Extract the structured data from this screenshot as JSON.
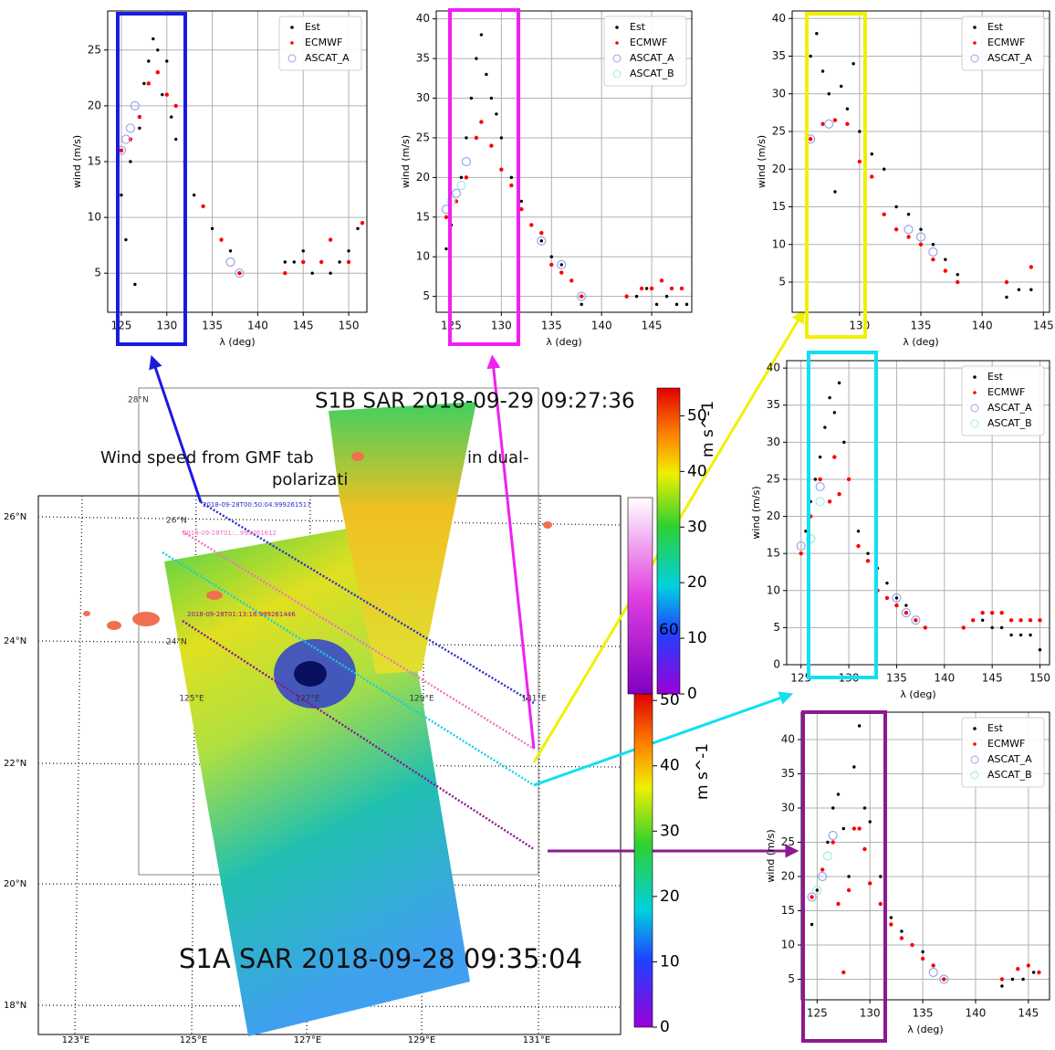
{
  "chart_data": [
    {
      "type": "scatter",
      "xlabel": "λ (deg)",
      "ylabel": "wind (m/s)",
      "xlim": [
        123.5,
        152
      ],
      "ylim": [
        1.5,
        28.5
      ],
      "xticks": [
        125,
        130,
        135,
        140,
        145,
        150
      ],
      "yticks": [
        5,
        10,
        15,
        20,
        25
      ],
      "grid": true,
      "legend": "upper right",
      "series": [
        {
          "name": "Est",
          "color": "#000000",
          "marker": "dot",
          "x": [
            125,
            125.5,
            126,
            126.5,
            127,
            127.5,
            128,
            128.5,
            129,
            129.5,
            130,
            130.5,
            131,
            132,
            133,
            134,
            135,
            136,
            137,
            138,
            143,
            144,
            145,
            146,
            147,
            148,
            149,
            150,
            151
          ],
          "values": [
            12,
            8,
            15,
            4,
            18,
            22,
            24,
            26,
            25,
            21,
            24,
            19,
            17,
            14,
            12,
            11,
            9,
            8,
            7,
            5,
            6,
            6,
            7,
            5,
            6,
            5,
            6,
            7,
            9
          ]
        },
        {
          "name": "ECMWF",
          "color": "#ff0000",
          "marker": "dot",
          "x": [
            125,
            126,
            127,
            128,
            129,
            130,
            131,
            132,
            134,
            136,
            138,
            143,
            145,
            147,
            148,
            150,
            151.5
          ],
          "values": [
            16,
            17,
            19,
            22,
            23,
            21,
            20,
            15,
            11,
            8,
            5,
            5,
            6,
            6,
            8,
            6,
            9.5
          ]
        },
        {
          "name": "ASCAT_A",
          "color": "#9aa4ee",
          "marker": "open",
          "x": [
            125,
            125.5,
            126,
            126.5,
            137,
            138
          ],
          "values": [
            16,
            17,
            18,
            20,
            6,
            5
          ]
        }
      ]
    },
    {
      "type": "scatter",
      "xlabel": "λ (deg)",
      "ylabel": "wind (m/s)",
      "xlim": [
        123.5,
        149
      ],
      "ylim": [
        3,
        41
      ],
      "xticks": [
        125,
        130,
        135,
        140,
        145
      ],
      "yticks": [
        5,
        10,
        15,
        20,
        25,
        30,
        35,
        40
      ],
      "grid": true,
      "legend": "upper right",
      "series": [
        {
          "name": "Est",
          "color": "#000000",
          "marker": "dot",
          "x": [
            124.5,
            125,
            125.5,
            126,
            126.5,
            127,
            127.5,
            128,
            128.5,
            129,
            129.5,
            130,
            131,
            132,
            133,
            134,
            135,
            136,
            137,
            138,
            142.5,
            143.5,
            144.5,
            145.5,
            146.5,
            147.5,
            148.5
          ],
          "values": [
            11,
            14,
            17,
            20,
            25,
            30,
            35,
            38,
            33,
            30,
            28,
            25,
            20,
            17,
            14,
            12,
            10,
            9,
            7,
            4,
            5,
            5,
            6,
            4,
            5,
            4,
            4
          ]
        },
        {
          "name": "ECMWF",
          "color": "#ff0000",
          "marker": "dot",
          "x": [
            124.5,
            125.5,
            126.5,
            127.5,
            128,
            129,
            130,
            131,
            132,
            133,
            134,
            135,
            136,
            137,
            138,
            142.5,
            144,
            145,
            146,
            147,
            148
          ],
          "values": [
            15,
            17,
            20,
            25,
            27,
            24,
            21,
            19,
            16,
            14,
            13,
            9,
            8,
            7,
            5,
            5,
            6,
            6,
            7,
            6,
            6
          ]
        },
        {
          "name": "ASCAT_A",
          "color": "#9aa4ee",
          "marker": "open",
          "x": [
            124.5,
            125.5,
            126.5,
            134,
            136,
            138
          ],
          "values": [
            16,
            18,
            22,
            12,
            9,
            5
          ]
        },
        {
          "name": "ASCAT_B",
          "color": "#9eeede",
          "marker": "open",
          "x": [
            125,
            126
          ],
          "values": [
            17,
            19
          ]
        }
      ]
    },
    {
      "type": "scatter",
      "xlabel": "λ (deg)",
      "ylabel": "wind (m/s)",
      "xlim": [
        124.5,
        145.5
      ],
      "ylim": [
        1,
        41
      ],
      "xticks": [
        130,
        135,
        140,
        145
      ],
      "yticks": [
        5,
        10,
        15,
        20,
        25,
        30,
        35,
        40
      ],
      "grid": true,
      "legend": "upper right",
      "series": [
        {
          "name": "Est",
          "color": "#000000",
          "marker": "dot",
          "x": [
            126,
            126.5,
            127,
            127.5,
            128,
            128.5,
            129,
            129.5,
            130,
            131,
            132,
            133,
            134,
            135,
            136,
            137,
            138,
            142,
            143,
            144
          ],
          "values": [
            35,
            38,
            33,
            30,
            17,
            31,
            28,
            34,
            25,
            22,
            20,
            15,
            14,
            12,
            10,
            8,
            6,
            3,
            4,
            4
          ]
        },
        {
          "name": "ECMWF",
          "color": "#ff0000",
          "marker": "dot",
          "x": [
            126,
            127,
            128,
            129,
            130,
            131,
            132,
            133,
            134,
            135,
            136,
            137,
            138,
            142,
            144
          ],
          "values": [
            24,
            26,
            26.5,
            26,
            21,
            19,
            14,
            12,
            11,
            10,
            8,
            6.5,
            5,
            5,
            7
          ]
        },
        {
          "name": "ASCAT_A",
          "color": "#9aa4ee",
          "marker": "open",
          "x": [
            126,
            127.5,
            134,
            135,
            136
          ],
          "values": [
            24,
            26,
            12,
            11,
            9
          ]
        }
      ]
    },
    {
      "type": "scatter",
      "xlabel": "λ (deg)",
      "ylabel": "wind (m/s)",
      "xlim": [
        123.5,
        151
      ],
      "ylim": [
        0,
        41
      ],
      "xticks": [
        125,
        130,
        135,
        140,
        145,
        150
      ],
      "yticks": [
        0,
        5,
        10,
        15,
        20,
        25,
        30,
        35,
        40
      ],
      "grid": true,
      "legend": "upper right",
      "series": [
        {
          "name": "Est",
          "color": "#000000",
          "marker": "dot",
          "x": [
            125,
            125.5,
            126,
            126.5,
            127,
            127.5,
            128,
            128.5,
            129,
            129.5,
            130,
            131,
            132,
            133,
            134,
            135,
            136,
            137,
            138,
            142,
            143,
            144,
            145,
            146,
            147,
            148,
            149,
            150
          ],
          "values": [
            15,
            18,
            22,
            25,
            28,
            32,
            36,
            34,
            38,
            30,
            25,
            18,
            15,
            13,
            11,
            9,
            8,
            6,
            5,
            5,
            6,
            6,
            5,
            5,
            4,
            4,
            4,
            2
          ]
        },
        {
          "name": "ECMWF",
          "color": "#ff0000",
          "marker": "dot",
          "x": [
            125,
            126,
            127,
            128,
            128.5,
            129,
            130,
            131,
            132,
            133,
            134,
            135,
            136,
            137,
            138,
            142,
            143,
            144,
            145,
            146,
            147,
            148,
            149,
            150
          ],
          "values": [
            15,
            20,
            25,
            22,
            28,
            23,
            25,
            16,
            14,
            10,
            9,
            8,
            7,
            6,
            5,
            5,
            6,
            7,
            7,
            7,
            6,
            6,
            6,
            6
          ]
        },
        {
          "name": "ASCAT_A",
          "color": "#9aa4ee",
          "marker": "open",
          "x": [
            125,
            126,
            127,
            135,
            136,
            137
          ],
          "values": [
            16,
            17,
            24,
            9,
            7,
            6
          ]
        },
        {
          "name": "ASCAT_B",
          "color": "#9eeede",
          "marker": "open",
          "x": [
            126,
            127
          ],
          "values": [
            17,
            22
          ]
        }
      ]
    },
    {
      "type": "scatter",
      "xlabel": "λ (deg)",
      "ylabel": "wind (m/s)",
      "xlim": [
        123.5,
        147
      ],
      "ylim": [
        2,
        44
      ],
      "xticks": [
        125,
        130,
        135,
        140,
        145
      ],
      "yticks": [
        5,
        10,
        15,
        20,
        25,
        30,
        35,
        40
      ],
      "grid": true,
      "legend": "upper right",
      "series": [
        {
          "name": "Est",
          "color": "#000000",
          "marker": "dot",
          "x": [
            124.5,
            125,
            125.5,
            126,
            126.5,
            127,
            127.5,
            128,
            128.5,
            129,
            129.5,
            130,
            131,
            132,
            133,
            134,
            135,
            136,
            137,
            142.5,
            143.5,
            144.5,
            145.5
          ],
          "values": [
            13,
            18,
            21,
            25,
            30,
            32,
            27,
            20,
            36,
            42,
            30,
            28,
            20,
            14,
            12,
            10,
            9,
            7,
            5,
            4,
            5,
            5,
            6
          ]
        },
        {
          "name": "ECMWF",
          "color": "#ff0000",
          "marker": "dot",
          "x": [
            124.5,
            125.5,
            126.5,
            127,
            127.5,
            128,
            128.5,
            129,
            129.5,
            130,
            131,
            132,
            133,
            134,
            135,
            136,
            137,
            142.5,
            144,
            145,
            146
          ],
          "values": [
            17,
            21,
            25,
            16,
            6,
            18,
            27,
            27,
            24,
            19,
            16,
            13,
            11,
            10,
            8,
            7,
            5,
            5,
            6.5,
            7,
            6
          ]
        },
        {
          "name": "ASCAT_A",
          "color": "#9aa4ee",
          "marker": "open",
          "x": [
            124.5,
            125.5,
            126.5,
            136,
            137
          ],
          "values": [
            17,
            20,
            26,
            6,
            5
          ]
        },
        {
          "name": "ASCAT_B",
          "color": "#9eeede",
          "marker": "open",
          "x": [
            125,
            126
          ],
          "values": [
            18,
            23
          ]
        }
      ]
    }
  ],
  "map": {
    "title_s1b": "S1B SAR 2018-09-29 09:27:36",
    "title_s1a": "S1A SAR 2018-09-28 09:35:04",
    "subtitle_part1": "Wind speed from GMF tab",
    "subtitle_part2": "in dual-",
    "subtitle_part3": "polarizati",
    "lat_labels": [
      "26°N",
      "24°N",
      "22°N",
      "20°N",
      "18°N"
    ],
    "lon_labels": [
      "123°E",
      "125°E",
      "127°E",
      "129°E",
      "131°E"
    ],
    "inner_lat_labels": [
      "28°N",
      "26°N",
      "24°N"
    ],
    "inner_lon_labels": [
      "125°E",
      "127°E",
      "129°E",
      "131°E"
    ],
    "track_labels": [
      "2018-09-28T00:50:04.999261517",
      "2018-09-28T01:...999261612",
      "2018-09-28T01:13:18.999261446"
    ],
    "hidden_tick": "60",
    "colorbars": [
      {
        "label": "m s^-1",
        "ylim": [
          0,
          55
        ],
        "yticks": [
          0,
          10,
          20,
          30,
          40,
          50
        ]
      },
      {
        "label": "m s^-1",
        "ylim": [
          0,
          51
        ],
        "yticks": [
          0,
          10,
          20,
          30,
          40,
          50
        ]
      }
    ]
  }
}
